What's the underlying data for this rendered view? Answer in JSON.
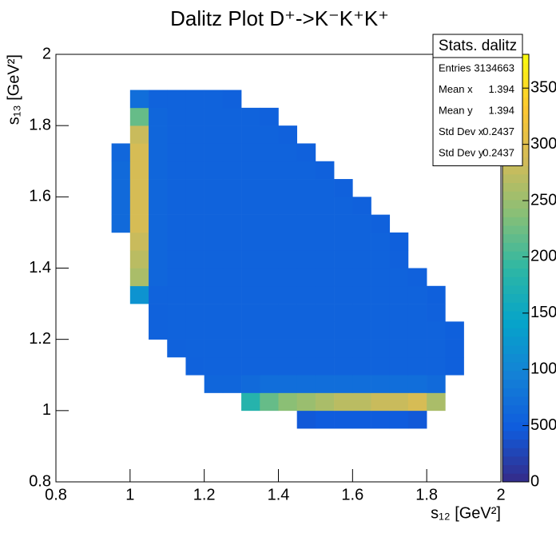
{
  "chart_data": {
    "type": "heatmap",
    "title": "Dalitz Plot D⁺->K⁻K⁺K⁺",
    "x_label": "s₁₂ [GeV²]",
    "y_label": "s₁₃ [GeV²]",
    "xlim": [
      0.8,
      2
    ],
    "ylim": [
      0.8,
      2
    ],
    "zlim": [
      0,
      3800
    ],
    "xticks": [
      0.8,
      1,
      1.2,
      1.4,
      1.6,
      1.8,
      2
    ],
    "yticks": [
      0.8,
      1,
      1.2,
      1.4,
      1.6,
      1.8,
      2
    ],
    "zticks": [
      0,
      500,
      1000,
      1500,
      2000,
      2500,
      3000,
      3500
    ],
    "palette": [
      "#352a87",
      "#0f5cdd",
      "#1481d6",
      "#06a4ca",
      "#2eb7a4",
      "#87bf77",
      "#d1bb59",
      "#fec832",
      "#f9fb0e"
    ],
    "x_bins": [
      0.95,
      1.0,
      1.05,
      1.1,
      1.15,
      1.2,
      1.25,
      1.3,
      1.35,
      1.4,
      1.45,
      1.5,
      1.55,
      1.6,
      1.65,
      1.7,
      1.75,
      1.8,
      1.85,
      1.9
    ],
    "y_bins": [
      0.95,
      1.0,
      1.05,
      1.1,
      1.15,
      1.2,
      1.25,
      1.3,
      1.35,
      1.4,
      1.45,
      1.5,
      1.55,
      1.6,
      1.65,
      1.7,
      1.75,
      1.8,
      1.85,
      1.9
    ],
    "z": [
      [
        0,
        0,
        0,
        0,
        0,
        0,
        0,
        0,
        0,
        0,
        450,
        480,
        480,
        480,
        480,
        480,
        450,
        0,
        0
      ],
      [
        0,
        0,
        0,
        0,
        0,
        0,
        0,
        1800,
        2200,
        2400,
        2500,
        2600,
        2700,
        2700,
        2800,
        2800,
        2900,
        2600,
        0
      ],
      [
        0,
        0,
        0,
        0,
        0,
        600,
        600,
        650,
        700,
        700,
        700,
        700,
        700,
        700,
        700,
        700,
        700,
        650,
        0
      ],
      [
        0,
        0,
        0,
        0,
        550,
        560,
        560,
        560,
        560,
        560,
        560,
        560,
        560,
        560,
        560,
        560,
        560,
        560,
        520
      ],
      [
        0,
        0,
        0,
        550,
        560,
        560,
        560,
        560,
        560,
        560,
        560,
        560,
        560,
        560,
        560,
        560,
        560,
        560,
        520
      ],
      [
        0,
        0,
        550,
        560,
        560,
        560,
        560,
        560,
        560,
        560,
        560,
        560,
        560,
        560,
        560,
        560,
        560,
        560,
        520
      ],
      [
        0,
        0,
        550,
        560,
        560,
        560,
        560,
        560,
        560,
        560,
        560,
        560,
        560,
        560,
        560,
        560,
        560,
        540,
        0
      ],
      [
        0,
        1200,
        560,
        560,
        560,
        560,
        560,
        560,
        560,
        560,
        560,
        560,
        560,
        560,
        560,
        560,
        560,
        520,
        0
      ],
      [
        0,
        2600,
        600,
        560,
        560,
        560,
        560,
        560,
        560,
        560,
        560,
        560,
        560,
        560,
        560,
        560,
        540,
        0,
        0
      ],
      [
        0,
        2700,
        600,
        560,
        560,
        560,
        560,
        560,
        560,
        560,
        560,
        560,
        560,
        560,
        560,
        540,
        0,
        0,
        0
      ],
      [
        0,
        2800,
        600,
        560,
        560,
        560,
        560,
        560,
        560,
        560,
        560,
        560,
        560,
        560,
        560,
        520,
        0,
        0,
        0
      ],
      [
        650,
        2900,
        600,
        560,
        560,
        560,
        560,
        560,
        560,
        560,
        560,
        560,
        560,
        560,
        540,
        0,
        0,
        0,
        0
      ],
      [
        650,
        2900,
        600,
        560,
        560,
        560,
        560,
        560,
        560,
        560,
        560,
        560,
        560,
        540,
        0,
        0,
        0,
        0,
        0
      ],
      [
        650,
        2900,
        600,
        560,
        560,
        560,
        560,
        560,
        560,
        560,
        560,
        560,
        540,
        0,
        0,
        0,
        0,
        0,
        0
      ],
      [
        650,
        2900,
        600,
        560,
        560,
        560,
        560,
        560,
        560,
        560,
        560,
        540,
        0,
        0,
        0,
        0,
        0,
        0,
        0
      ],
      [
        620,
        2900,
        600,
        560,
        560,
        560,
        560,
        560,
        560,
        560,
        540,
        0,
        0,
        0,
        0,
        0,
        0,
        0,
        0
      ],
      [
        0,
        2800,
        600,
        560,
        560,
        560,
        560,
        560,
        560,
        540,
        0,
        0,
        0,
        0,
        0,
        0,
        0,
        0,
        0
      ],
      [
        0,
        2200,
        600,
        560,
        560,
        560,
        560,
        560,
        540,
        0,
        0,
        0,
        0,
        0,
        0,
        0,
        0,
        0,
        0
      ],
      [
        0,
        700,
        560,
        560,
        560,
        560,
        540,
        0,
        0,
        0,
        0,
        0,
        0,
        0,
        0,
        0,
        0,
        0,
        0
      ]
    ],
    "stats": {
      "title": "Stats. dalitz",
      "rows": [
        {
          "label": "Entries",
          "value": 3134663
        },
        {
          "label": "Mean x",
          "value": 1.394
        },
        {
          "label": "Mean y",
          "value": 1.394
        },
        {
          "label": "Std Dev x",
          "value": 0.2437
        },
        {
          "label": "Std Dev y",
          "value": 0.2437
        }
      ]
    }
  }
}
